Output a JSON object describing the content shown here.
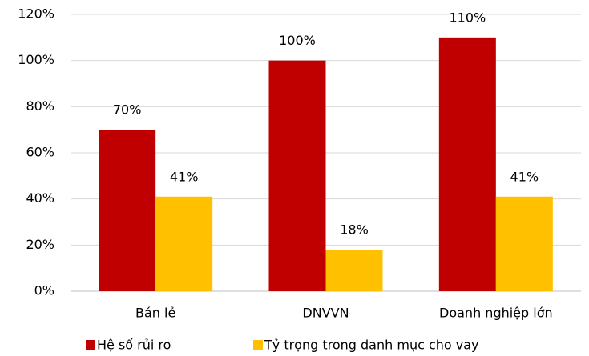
{
  "chart_data": {
    "type": "bar",
    "categories": [
      "Bán lẻ",
      "DNVVN",
      "Doanh nghiệp lớn"
    ],
    "series": [
      {
        "name": "Hệ số rủi ro",
        "color": "#c00000",
        "values": [
          70,
          100,
          110
        ],
        "value_labels": [
          "70%",
          "100%",
          "110%"
        ]
      },
      {
        "name": "Tỷ trọng trong danh mục cho vay",
        "color": "#ffc000",
        "values": [
          41,
          18,
          41
        ],
        "value_labels": [
          "41%",
          "18%",
          "41%"
        ]
      }
    ],
    "ylim": [
      0,
      120
    ],
    "yticks": [
      {
        "value": 0,
        "label": "0%"
      },
      {
        "value": 20,
        "label": "20%"
      },
      {
        "value": 40,
        "label": "40%"
      },
      {
        "value": 60,
        "label": "60%"
      },
      {
        "value": 80,
        "label": "80%"
      },
      {
        "value": 100,
        "label": "100%"
      },
      {
        "value": 120,
        "label": "120%"
      }
    ],
    "grid": true,
    "legend": "bottom"
  }
}
